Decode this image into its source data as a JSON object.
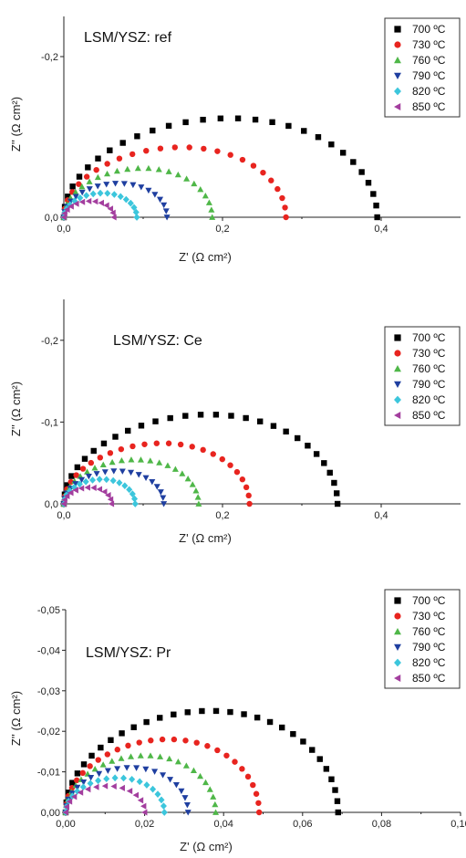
{
  "chart_data": [
    {
      "type": "scatter",
      "title": "LSM/YSZ: ref",
      "xlabel": "Z' (Ω cm²)",
      "ylabel": "Z'' (Ω cm²)",
      "xlim": [
        0,
        0.5
      ],
      "ylim": [
        0,
        -0.25
      ],
      "xticks": [
        0,
        0.2,
        0.4
      ],
      "xtick_labels": [
        "0,0",
        "0,2",
        "0,4"
      ],
      "yticks": [
        0,
        -0.2
      ],
      "ytick_labels": [
        "0,0",
        "-0,2"
      ],
      "legend_position": "top-right",
      "series": [
        {
          "name": "700 ºC",
          "color": "#000000",
          "marker": "square",
          "x0": 0,
          "x1": 0.395,
          "peak": -0.123
        },
        {
          "name": "730 ºC",
          "color": "#e8241f",
          "marker": "circle",
          "x0": 0,
          "x1": 0.28,
          "peak": -0.087
        },
        {
          "name": "760 ºC",
          "color": "#4fb748",
          "marker": "triangle",
          "x0": 0,
          "x1": 0.187,
          "peak": -0.061
        },
        {
          "name": "790 ºC",
          "color": "#1f3fa0",
          "marker": "tri-down",
          "x0": 0,
          "x1": 0.13,
          "peak": -0.042
        },
        {
          "name": "820 ºC",
          "color": "#3cc6dc",
          "marker": "diamond",
          "x0": 0,
          "x1": 0.092,
          "peak": -0.03
        },
        {
          "name": "850 ºC",
          "color": "#a33e9e",
          "marker": "tri-left",
          "x0": 0,
          "x1": 0.063,
          "peak": -0.02
        }
      ]
    },
    {
      "type": "scatter",
      "title": "LSM/YSZ: Ce",
      "xlabel": "Z' (Ω cm²)",
      "ylabel": "Z'' (Ω cm²)",
      "xlim": [
        0,
        0.5
      ],
      "ylim": [
        0,
        -0.25
      ],
      "xticks": [
        0,
        0.2,
        0.4
      ],
      "xtick_labels": [
        "0,0",
        "0,2",
        "0,4"
      ],
      "yticks": [
        0,
        -0.1,
        -0.2
      ],
      "ytick_labels": [
        "0,0",
        "-0,1",
        "-0,2"
      ],
      "legend_position": "top-right",
      "series": [
        {
          "name": "700 ºC",
          "color": "#000000",
          "marker": "square",
          "x0": 0,
          "x1": 0.345,
          "peak": -0.109
        },
        {
          "name": "730 ºC",
          "color": "#e8241f",
          "marker": "circle",
          "x0": 0,
          "x1": 0.234,
          "peak": -0.074
        },
        {
          "name": "760 ºC",
          "color": "#4fb748",
          "marker": "triangle",
          "x0": 0,
          "x1": 0.17,
          "peak": -0.054
        },
        {
          "name": "790 ºC",
          "color": "#1f3fa0",
          "marker": "tri-down",
          "x0": 0,
          "x1": 0.126,
          "peak": -0.04
        },
        {
          "name": "820 ºC",
          "color": "#3cc6dc",
          "marker": "diamond",
          "x0": 0,
          "x1": 0.09,
          "peak": -0.03
        },
        {
          "name": "850 ºC",
          "color": "#a33e9e",
          "marker": "tri-left",
          "x0": 0,
          "x1": 0.06,
          "peak": -0.02
        }
      ]
    },
    {
      "type": "scatter",
      "title": "LSM/YSZ: Pr",
      "xlabel": "Z' (Ω cm²)",
      "ylabel": "Z'' (Ω cm²)",
      "xlim": [
        0,
        0.1
      ],
      "ylim": [
        0,
        -0.05
      ],
      "xticks": [
        0,
        0.02,
        0.04,
        0.06,
        0.08,
        0.1
      ],
      "xtick_labels": [
        "0,00",
        "0,02",
        "0,04",
        "0,06",
        "0,08",
        "0,10"
      ],
      "yticks": [
        0,
        -0.01,
        -0.02,
        -0.03,
        -0.04,
        -0.05
      ],
      "ytick_labels": [
        "0,00",
        "-0,01",
        "-0,02",
        "-0,03",
        "-0,04",
        "-0,05"
      ],
      "legend_position": "top-right",
      "series": [
        {
          "name": "700 ºC",
          "color": "#000000",
          "marker": "square",
          "x0": 0,
          "x1": 0.069,
          "peak": -0.025
        },
        {
          "name": "730 ºC",
          "color": "#e8241f",
          "marker": "circle",
          "x0": 0,
          "x1": 0.049,
          "peak": -0.018
        },
        {
          "name": "760 ºC",
          "color": "#4fb748",
          "marker": "triangle",
          "x0": 0,
          "x1": 0.038,
          "peak": -0.014
        },
        {
          "name": "790 ºC",
          "color": "#1f3fa0",
          "marker": "tri-down",
          "x0": 0,
          "x1": 0.031,
          "peak": -0.011
        },
        {
          "name": "820 ºC",
          "color": "#3cc6dc",
          "marker": "diamond",
          "x0": 0,
          "x1": 0.025,
          "peak": -0.0085
        },
        {
          "name": "850 ºC",
          "color": "#a33e9e",
          "marker": "tri-left",
          "x0": 0,
          "x1": 0.02,
          "peak": -0.0065
        }
      ]
    }
  ]
}
